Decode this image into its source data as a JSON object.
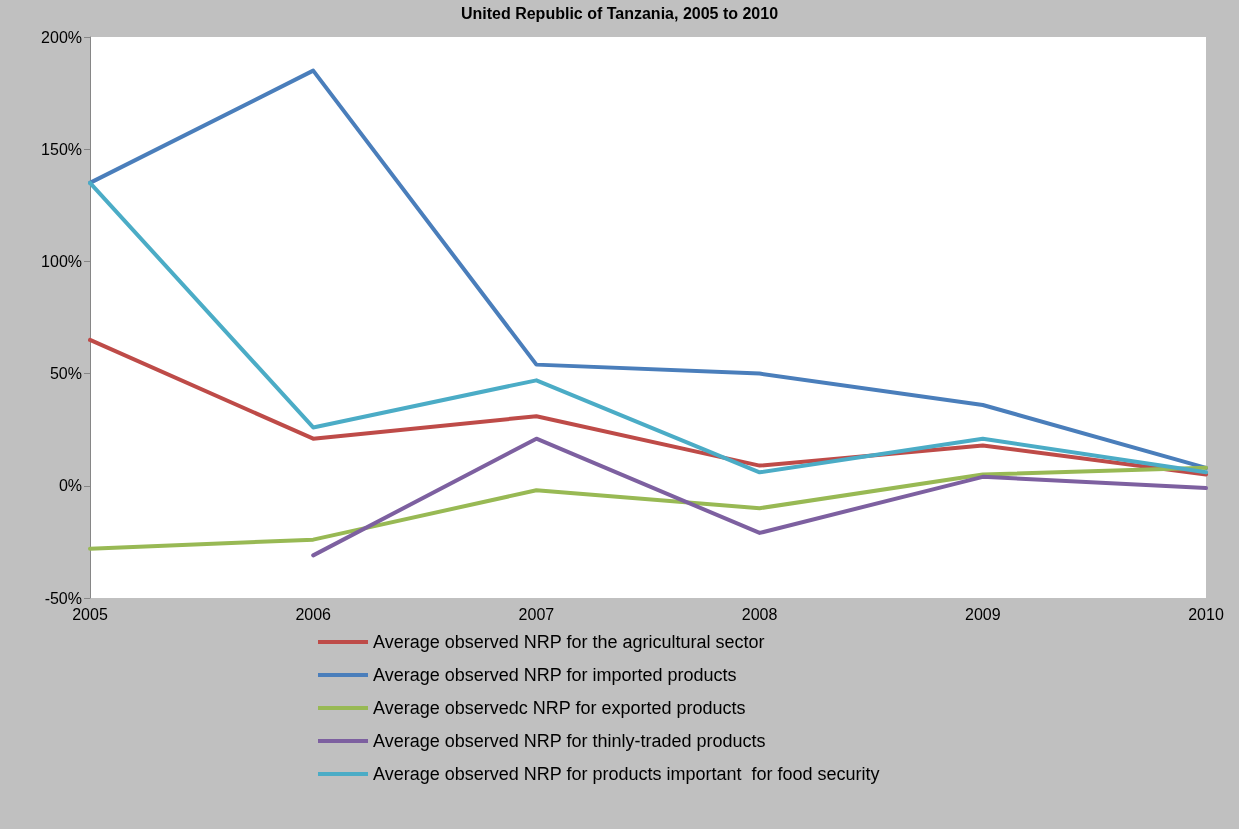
{
  "chart_data": {
    "type": "line",
    "title": "United Republic of Tanzania, 2005 to 2010",
    "categories": [
      "2005",
      "2006",
      "2007",
      "2008",
      "2009",
      "2010"
    ],
    "series": [
      {
        "name": "Average observed NRP for the agricultural sector",
        "color": "#be4b48",
        "values": [
          65,
          21,
          31,
          9,
          18,
          5
        ]
      },
      {
        "name": "Average observed NRP for imported products",
        "color": "#4a7ebb",
        "values": [
          135,
          185,
          54,
          50,
          36,
          8
        ]
      },
      {
        "name": "Average observedc NRP for exported products",
        "color": "#98b954",
        "values": [
          -28,
          -24,
          -2,
          -10,
          5,
          8
        ]
      },
      {
        "name": "Average observed NRP for thinly-traded products",
        "color": "#7d60a0",
        "values": [
          null,
          -31,
          21,
          -21,
          4,
          -1
        ]
      },
      {
        "name": "Average observed NRP for products important  for food security",
        "color": "#4bacc6",
        "values": [
          135,
          26,
          47,
          6,
          21,
          6
        ]
      }
    ],
    "ylim": [
      -50,
      200
    ],
    "yticks": [
      {
        "value": -50,
        "label": "-50%"
      },
      {
        "value": 0,
        "label": "0%"
      },
      {
        "value": 50,
        "label": "50%"
      },
      {
        "value": 100,
        "label": "100%"
      },
      {
        "value": 150,
        "label": "150%"
      },
      {
        "value": 200,
        "label": "200%"
      }
    ],
    "grid": false,
    "legend": "bottom",
    "marker": "none",
    "line_style": "solid"
  }
}
